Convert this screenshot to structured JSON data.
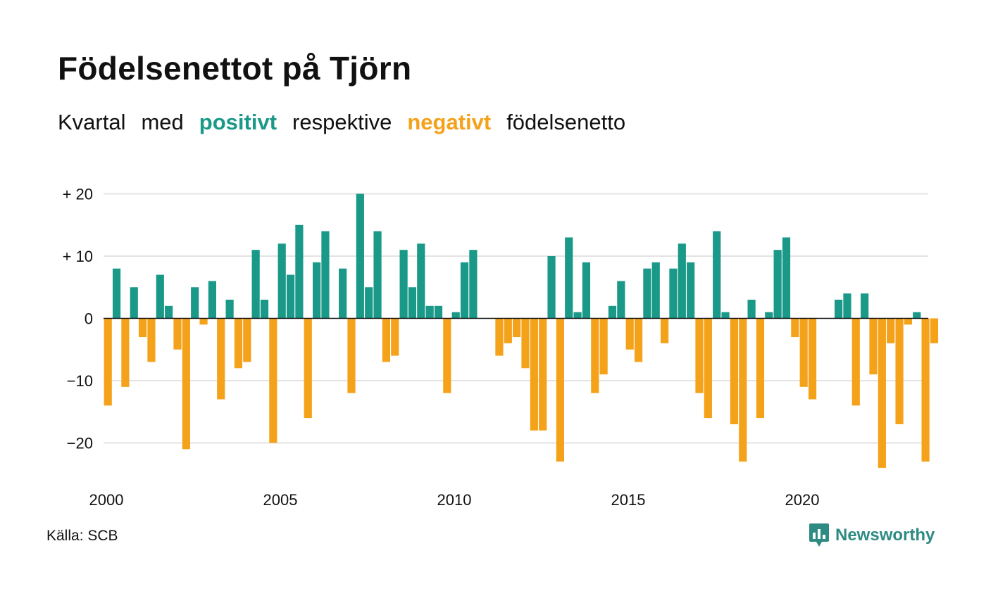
{
  "title": "Födelsenettot på Tjörn",
  "subtitle": {
    "w1": "Kvartal",
    "w2": "med",
    "positive": "positivt",
    "w3": "respektive",
    "negative": "negativt",
    "w4": "födelsenetto"
  },
  "colors": {
    "positive": "#1a9988",
    "negative": "#f5a21b",
    "grid": "#e3e3e3",
    "logo": "#2e8b83"
  },
  "source": "Källa: SCB",
  "logo": {
    "text": "Newsworthy",
    "icon": "chart-bubble-icon"
  },
  "chart_data": {
    "type": "bar",
    "x_start": "2000 Q1",
    "frequency": "quarterly",
    "xticks": [
      "2000",
      "2005",
      "2010",
      "2015",
      "2020"
    ],
    "yticks": [
      {
        "value": 20,
        "label": "+ 20"
      },
      {
        "value": 10,
        "label": "+ 10"
      },
      {
        "value": 0,
        "label": "0"
      },
      {
        "value": -10,
        "label": "−10"
      },
      {
        "value": -20,
        "label": "−20"
      }
    ],
    "ylim": [
      -25,
      20
    ],
    "grid": true,
    "values": [
      -14,
      8,
      -11,
      5,
      -3,
      -7,
      7,
      2,
      -5,
      -21,
      5,
      -1,
      6,
      -13,
      3,
      -8,
      -7,
      11,
      3,
      -20,
      12,
      7,
      15,
      -16,
      9,
      14,
      0,
      8,
      -12,
      20,
      5,
      14,
      -7,
      -6,
      11,
      5,
      12,
      2,
      2,
      -12,
      1,
      9,
      11,
      0,
      0,
      -6,
      -4,
      -3,
      -8,
      -18,
      -18,
      10,
      -23,
      13,
      1,
      9,
      -12,
      -9,
      2,
      6,
      -5,
      -7,
      8,
      9,
      -4,
      8,
      12,
      9,
      -12,
      -16,
      14,
      1,
      -17,
      -23,
      3,
      -16,
      1,
      11,
      13,
      -3,
      -11,
      -13,
      0,
      0,
      3,
      4,
      -14,
      4,
      -9,
      -24,
      -4,
      -17,
      -1,
      1,
      -23,
      -4
    ]
  }
}
